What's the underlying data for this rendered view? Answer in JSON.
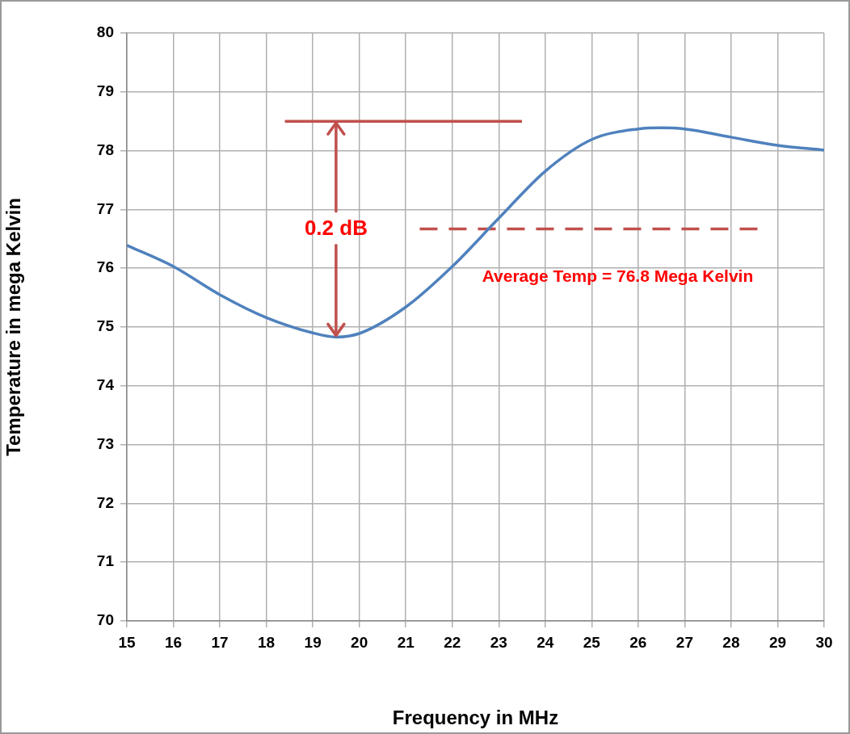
{
  "chart_data": {
    "type": "line",
    "xlabel": "Frequency in MHz",
    "ylabel": "Temperature in mega Kelvin",
    "xlim": [
      15,
      30
    ],
    "xticks": [
      15,
      16,
      17,
      18,
      19,
      20,
      21,
      22,
      23,
      24,
      25,
      26,
      27,
      28,
      29,
      30
    ],
    "ylim": [
      70,
      80
    ],
    "yticks": [
      70,
      71,
      72,
      73,
      74,
      75,
      76,
      77,
      78,
      79,
      80
    ],
    "grid": true,
    "legend": false,
    "marker": "none",
    "series": [
      {
        "color": "#4f81bd",
        "line_style": "solid",
        "x": [
          15,
          16,
          17,
          18,
          19,
          19.5,
          20,
          21,
          22,
          23,
          24,
          25,
          26,
          26.5,
          27,
          28,
          29,
          30
        ],
        "values": [
          76.39,
          76.03,
          75.55,
          75.16,
          74.9,
          74.83,
          74.89,
          75.34,
          76.03,
          76.85,
          77.65,
          78.19,
          78.37,
          78.39,
          78.37,
          78.23,
          78.09,
          78.01
        ]
      },
      {
        "color": "#c0504d",
        "line_style": "solid",
        "x": [
          18.4,
          23.5
        ],
        "values": [
          78.5,
          78.5
        ]
      },
      {
        "color": "#c0504d",
        "line_style": "dashed",
        "x": [
          21.3,
          28.6
        ],
        "values": [
          76.67,
          76.67
        ]
      }
    ],
    "annotations": [
      {
        "text": "0.2 dB",
        "x": 19.5,
        "y": 74.83
      },
      "Average Temp = 76.8 Mega Kelvin"
    ]
  }
}
